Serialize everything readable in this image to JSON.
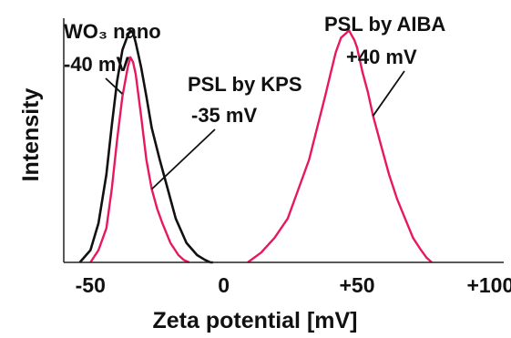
{
  "chart_data": {
    "type": "line",
    "title": "",
    "xlabel": "Zeta potential [mV]",
    "ylabel": "Intensity",
    "xlim": [
      -60,
      105
    ],
    "ylim": [
      0,
      1.0
    ],
    "x_ticks": [
      -50,
      0,
      50,
      100
    ],
    "x_tick_labels": [
      "-50",
      "0",
      "+50",
      "+100"
    ],
    "grid": false,
    "legend": "none",
    "series": [
      {
        "color": "#111111",
        "x": [
          -54,
          -50,
          -47,
          -44,
          -42,
          -40,
          -38,
          -36,
          -35,
          -34,
          -33,
          -31,
          -29,
          -27,
          -24,
          -21,
          -18,
          -14,
          -10,
          -7,
          -5,
          -4
        ],
        "y": [
          0.0,
          0.05,
          0.16,
          0.36,
          0.56,
          0.74,
          0.87,
          0.93,
          0.95,
          0.94,
          0.9,
          0.8,
          0.68,
          0.55,
          0.42,
          0.3,
          0.18,
          0.08,
          0.03,
          0.01,
          0.0,
          0.0
        ]
      },
      {
        "color": "#e8185f",
        "x": [
          -50,
          -47,
          -44,
          -42,
          -40,
          -38,
          -36,
          -35,
          -34,
          -33,
          -31,
          -29,
          -27,
          -25,
          -23,
          -20,
          -17,
          -15,
          -13
        ],
        "y": [
          0.0,
          0.05,
          0.14,
          0.3,
          0.5,
          0.68,
          0.8,
          0.84,
          0.82,
          0.77,
          0.6,
          0.42,
          0.3,
          0.22,
          0.16,
          0.08,
          0.03,
          0.01,
          0.0
        ]
      },
      {
        "color": "#e8185f",
        "x": [
          9,
          14,
          19,
          24,
          28,
          32,
          35,
          38,
          40,
          42,
          44,
          46,
          47,
          48,
          49,
          50,
          52,
          54,
          56,
          59,
          62,
          65,
          68,
          71,
          74,
          76,
          78
        ],
        "y": [
          0.0,
          0.04,
          0.1,
          0.18,
          0.3,
          0.42,
          0.55,
          0.68,
          0.77,
          0.86,
          0.92,
          0.94,
          0.95,
          0.93,
          0.91,
          0.88,
          0.78,
          0.7,
          0.6,
          0.48,
          0.36,
          0.26,
          0.18,
          0.1,
          0.05,
          0.02,
          0.0
        ]
      }
    ],
    "annotations": [
      {
        "id": "wo3",
        "lines": [
          "WO₃ nano",
          "-40 mV"
        ],
        "points_to": [
          -38,
          0.69
        ]
      },
      {
        "id": "kps",
        "lines": [
          "PSL by KPS",
          "-35 mV"
        ],
        "points_to": [
          -27,
          0.3
        ]
      },
      {
        "id": "aiba",
        "lines": [
          "PSL by AIBA",
          "+40 mV"
        ],
        "points_to": [
          56,
          0.6
        ]
      }
    ]
  }
}
